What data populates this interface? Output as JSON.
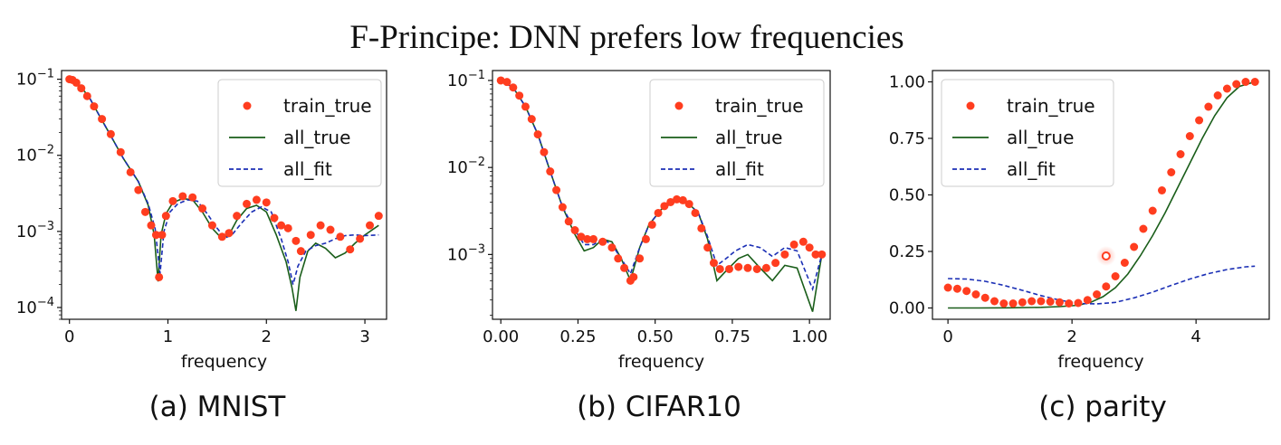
{
  "title": "F-Principe: DNN prefers low frequencies",
  "colors": {
    "train_true": "#ff3d1f",
    "all_true": "#1a5e1a",
    "all_fit": "#1b2fb5"
  },
  "chart_data": [
    {
      "caption": "(a) MNIST",
      "type": "line",
      "xlabel": "frequency",
      "yscale": "log",
      "xlim": [
        -0.08,
        3.22
      ],
      "ylim": [
        7e-05,
        0.13
      ],
      "xticks": [
        0,
        1,
        2,
        3
      ],
      "xticklabels": [
        "0",
        "1",
        "2",
        "3"
      ],
      "yticks": [
        0.1,
        0.01,
        0.001,
        0.0001
      ],
      "yticklabels": [
        [
          "10",
          "−1"
        ],
        [
          "10",
          "−2"
        ],
        [
          "10",
          "−3"
        ],
        [
          "10",
          "−4"
        ]
      ],
      "legend": [
        "train_true",
        "all_true",
        "all_fit"
      ],
      "legend_loc": "upper right",
      "series": [
        {
          "name": "train_true",
          "kind": "scatter",
          "x": [
            0.0,
            0.03,
            0.07,
            0.12,
            0.18,
            0.25,
            0.33,
            0.42,
            0.52,
            0.62,
            0.7,
            0.77,
            0.83,
            0.88,
            0.91,
            0.94,
            0.98,
            1.05,
            1.15,
            1.25,
            1.35,
            1.45,
            1.55,
            1.62,
            1.7,
            1.8,
            1.9,
            2.0,
            2.08,
            2.15,
            2.22,
            2.3,
            2.35,
            2.45,
            2.55,
            2.65,
            2.75,
            2.85,
            2.95,
            3.05,
            3.14
          ],
          "y": [
            0.1,
            0.098,
            0.09,
            0.076,
            0.06,
            0.044,
            0.03,
            0.019,
            0.011,
            0.006,
            0.0035,
            0.0018,
            0.0012,
            0.0009,
            0.00025,
            0.0009,
            0.0016,
            0.0025,
            0.0029,
            0.0028,
            0.002,
            0.0012,
            0.00085,
            0.00095,
            0.0016,
            0.0023,
            0.0026,
            0.0024,
            0.0015,
            0.0012,
            0.0011,
            0.00075,
            0.00055,
            0.0009,
            0.0012,
            0.00105,
            0.00085,
            0.00058,
            0.0008,
            0.0012,
            0.0016
          ]
        },
        {
          "name": "all_true",
          "kind": "line",
          "x": [
            0.0,
            0.05,
            0.12,
            0.2,
            0.3,
            0.42,
            0.55,
            0.7,
            0.8,
            0.86,
            0.9,
            0.93,
            0.98,
            1.05,
            1.15,
            1.25,
            1.35,
            1.45,
            1.55,
            1.62,
            1.7,
            1.8,
            1.9,
            2.0,
            2.1,
            2.2,
            2.26,
            2.3,
            2.34,
            2.42,
            2.5,
            2.6,
            2.7,
            2.8,
            2.9,
            3.0,
            3.14
          ],
          "y": [
            0.1,
            0.095,
            0.078,
            0.058,
            0.034,
            0.018,
            0.009,
            0.0045,
            0.0022,
            0.0009,
            0.00022,
            0.0009,
            0.0017,
            0.0024,
            0.0027,
            0.0026,
            0.0018,
            0.0011,
            0.0008,
            0.0009,
            0.0014,
            0.002,
            0.0022,
            0.0018,
            0.0009,
            0.0004,
            0.00018,
            9e-05,
            0.00025,
            0.00055,
            0.0007,
            0.0006,
            0.00045,
            0.00052,
            0.0007,
            0.0009,
            0.0012
          ]
        },
        {
          "name": "all_fit",
          "kind": "dashed",
          "x": [
            0.0,
            0.05,
            0.12,
            0.2,
            0.3,
            0.42,
            0.55,
            0.7,
            0.8,
            0.87,
            0.92,
            0.96,
            1.02,
            1.1,
            1.2,
            1.3,
            1.4,
            1.5,
            1.58,
            1.65,
            1.75,
            1.85,
            1.95,
            2.05,
            2.15,
            2.22,
            2.27,
            2.32,
            2.4,
            2.5,
            2.6,
            2.7,
            2.8,
            2.9,
            3.0,
            3.14
          ],
          "y": [
            0.1,
            0.095,
            0.078,
            0.058,
            0.034,
            0.018,
            0.009,
            0.0045,
            0.0023,
            0.0011,
            0.00028,
            0.001,
            0.0018,
            0.0023,
            0.0026,
            0.0025,
            0.0017,
            0.0011,
            0.00082,
            0.0009,
            0.0013,
            0.0018,
            0.0021,
            0.0018,
            0.0008,
            0.0004,
            0.0002,
            0.00035,
            0.00055,
            0.00065,
            0.0007,
            0.0008,
            0.00088,
            0.0009,
            0.00088,
            0.0009
          ]
        }
      ]
    },
    {
      "caption": "(b) CIFAR10",
      "type": "line",
      "xlabel": "frequency",
      "yscale": "log",
      "xlim": [
        -0.027,
        1.067
      ],
      "ylim": [
        0.00018,
        0.13
      ],
      "xticks": [
        0,
        0.25,
        0.5,
        0.75,
        1.0
      ],
      "xticklabels": [
        "0.00",
        "0.25",
        "0.50",
        "0.75",
        "1.00"
      ],
      "yticks": [
        0.1,
        0.01,
        0.001
      ],
      "yticklabels": [
        [
          "10",
          "−1"
        ],
        [
          "10",
          "−2"
        ],
        [
          "10",
          "−3"
        ]
      ],
      "legend": [
        "train_true",
        "all_true",
        "all_fit"
      ],
      "legend_loc": "upper right",
      "series": [
        {
          "name": "train_true",
          "kind": "scatter",
          "x": [
            0.0,
            0.02,
            0.04,
            0.06,
            0.08,
            0.1,
            0.12,
            0.14,
            0.16,
            0.18,
            0.2,
            0.22,
            0.24,
            0.26,
            0.28,
            0.3,
            0.33,
            0.36,
            0.38,
            0.4,
            0.42,
            0.43,
            0.45,
            0.47,
            0.49,
            0.51,
            0.53,
            0.55,
            0.57,
            0.59,
            0.61,
            0.63,
            0.65,
            0.67,
            0.69,
            0.71,
            0.74,
            0.77,
            0.8,
            0.83,
            0.86,
            0.89,
            0.92,
            0.95,
            0.98,
            1.0,
            1.02,
            1.04
          ],
          "y": [
            0.1,
            0.096,
            0.083,
            0.067,
            0.05,
            0.036,
            0.024,
            0.015,
            0.009,
            0.0055,
            0.0035,
            0.0024,
            0.0019,
            0.0016,
            0.0015,
            0.0015,
            0.0014,
            0.0012,
            0.0009,
            0.0007,
            0.0005,
            0.00055,
            0.0009,
            0.0015,
            0.0022,
            0.003,
            0.0036,
            0.004,
            0.0043,
            0.0042,
            0.0038,
            0.003,
            0.002,
            0.0012,
            0.0008,
            0.00068,
            0.00068,
            0.00072,
            0.0007,
            0.00068,
            0.0007,
            0.0008,
            0.001,
            0.0013,
            0.0014,
            0.0012,
            0.001,
            0.001
          ]
        },
        {
          "name": "all_true",
          "kind": "line",
          "x": [
            0.0,
            0.04,
            0.08,
            0.12,
            0.16,
            0.2,
            0.24,
            0.27,
            0.3,
            0.33,
            0.36,
            0.39,
            0.42,
            0.45,
            0.48,
            0.52,
            0.56,
            0.6,
            0.64,
            0.67,
            0.7,
            0.73,
            0.77,
            0.8,
            0.84,
            0.88,
            0.92,
            0.96,
            0.99,
            1.01,
            1.04
          ],
          "y": [
            0.1,
            0.083,
            0.05,
            0.024,
            0.009,
            0.0035,
            0.0017,
            0.0011,
            0.0012,
            0.0015,
            0.0014,
            0.0009,
            0.0005,
            0.0012,
            0.0022,
            0.0033,
            0.004,
            0.0041,
            0.003,
            0.0015,
            0.0005,
            0.00065,
            0.0009,
            0.001,
            0.0007,
            0.0005,
            0.00075,
            0.0007,
            0.00035,
            0.00022,
            0.001
          ]
        },
        {
          "name": "all_fit",
          "kind": "dashed",
          "x": [
            0.0,
            0.04,
            0.08,
            0.12,
            0.16,
            0.2,
            0.24,
            0.27,
            0.3,
            0.33,
            0.36,
            0.39,
            0.42,
            0.45,
            0.48,
            0.52,
            0.56,
            0.6,
            0.64,
            0.67,
            0.7,
            0.73,
            0.76,
            0.8,
            0.84,
            0.88,
            0.92,
            0.96,
            0.99,
            1.01,
            1.04
          ],
          "y": [
            0.1,
            0.083,
            0.05,
            0.024,
            0.009,
            0.0035,
            0.0019,
            0.0013,
            0.0013,
            0.0015,
            0.0013,
            0.0009,
            0.0006,
            0.0012,
            0.0022,
            0.0033,
            0.004,
            0.0041,
            0.003,
            0.0016,
            0.00075,
            0.0009,
            0.0011,
            0.0013,
            0.0012,
            0.00095,
            0.0012,
            0.0011,
            0.0006,
            0.0004,
            0.001
          ]
        }
      ]
    },
    {
      "caption": "(c) parity",
      "type": "line",
      "xlabel": "frequency",
      "yscale": "linear",
      "xlim": [
        -0.25,
        5.18
      ],
      "ylim": [
        -0.05,
        1.05
      ],
      "xticks": [
        0,
        2,
        4
      ],
      "xticklabels": [
        "0",
        "2",
        "4"
      ],
      "yticks": [
        0.0,
        0.25,
        0.5,
        0.75,
        1.0
      ],
      "yticklabels": [
        [
          "0.00",
          ""
        ],
        [
          "0.25",
          ""
        ],
        [
          "0.50",
          ""
        ],
        [
          "0.75",
          ""
        ],
        [
          "1.00",
          ""
        ]
      ],
      "legend": [
        "train_true",
        "all_true",
        "all_fit"
      ],
      "legend_loc": "upper left",
      "series": [
        {
          "name": "train_true",
          "kind": "scatter",
          "x": [
            0.0,
            0.15,
            0.3,
            0.45,
            0.6,
            0.75,
            0.9,
            1.05,
            1.2,
            1.35,
            1.5,
            1.65,
            1.8,
            1.95,
            2.1,
            2.25,
            2.4,
            2.55,
            2.7,
            2.85,
            3.0,
            3.15,
            3.3,
            3.45,
            3.6,
            3.75,
            3.9,
            4.05,
            4.2,
            4.35,
            4.5,
            4.65,
            4.8,
            4.95
          ],
          "y": [
            0.09,
            0.085,
            0.075,
            0.06,
            0.045,
            0.03,
            0.02,
            0.02,
            0.025,
            0.03,
            0.03,
            0.028,
            0.025,
            0.02,
            0.022,
            0.035,
            0.06,
            0.095,
            0.14,
            0.2,
            0.27,
            0.35,
            0.43,
            0.52,
            0.6,
            0.68,
            0.76,
            0.83,
            0.89,
            0.94,
            0.97,
            0.99,
            1.0,
            1.0
          ]
        },
        {
          "name": "all_true",
          "kind": "line",
          "x": [
            0.0,
            0.5,
            1.0,
            1.5,
            1.8,
            2.1,
            2.3,
            2.5,
            2.7,
            2.9,
            3.1,
            3.3,
            3.5,
            3.7,
            3.9,
            4.1,
            4.3,
            4.5,
            4.7,
            4.95
          ],
          "y": [
            0.0,
            0.0,
            0.001,
            0.003,
            0.006,
            0.012,
            0.025,
            0.05,
            0.09,
            0.15,
            0.23,
            0.32,
            0.42,
            0.53,
            0.64,
            0.75,
            0.85,
            0.93,
            0.98,
            1.0
          ]
        },
        {
          "name": "all_fit",
          "kind": "dashed",
          "x": [
            0.0,
            0.3,
            0.6,
            0.9,
            1.2,
            1.5,
            1.8,
            2.1,
            2.4,
            2.7,
            3.0,
            3.3,
            3.6,
            3.9,
            4.2,
            4.5,
            4.8,
            4.95
          ],
          "y": [
            0.13,
            0.128,
            0.118,
            0.1,
            0.078,
            0.055,
            0.035,
            0.02,
            0.018,
            0.025,
            0.045,
            0.07,
            0.1,
            0.128,
            0.152,
            0.17,
            0.182,
            0.185
          ]
        },
        {
          "name": "highlight",
          "kind": "marker",
          "x": [
            2.55
          ],
          "y": [
            0.23
          ]
        }
      ]
    }
  ]
}
